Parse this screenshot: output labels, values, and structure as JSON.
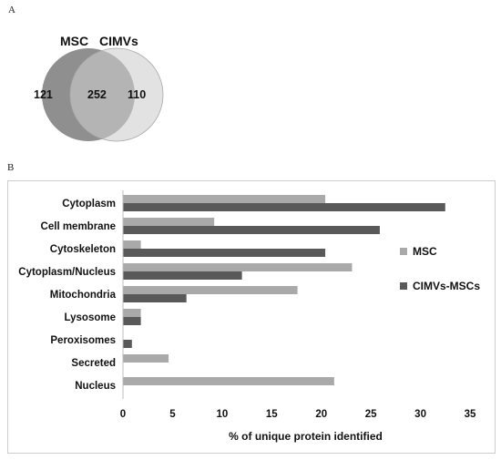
{
  "panels": {
    "a_label": "A",
    "b_label": "B"
  },
  "venn": {
    "set_a_label": "MSC",
    "set_b_label": "CIMVs",
    "only_a": "121",
    "both": "252",
    "only_b": "110",
    "colors": {
      "a": "#8f8f8f",
      "b": "#e2e2e2",
      "overlap": "#b4b4b4",
      "edge": "#a8a8a8"
    }
  },
  "chart_data": {
    "type": "bar",
    "orientation": "horizontal",
    "categories": [
      "Cytoplasm",
      "Cell membrane",
      "Cytoskeleton",
      "Cytoplasm/Nucleus",
      "Mitochondria",
      "Lysosome",
      "Peroxisomes",
      "Secreted",
      "Nucleus"
    ],
    "series": [
      {
        "name": "MSC",
        "values": [
          20.4,
          9.2,
          1.8,
          23.1,
          17.6,
          1.8,
          0,
          4.6,
          21.3
        ],
        "color": "#a9a9a9"
      },
      {
        "name": "CIMVs-MSCs",
        "values": [
          32.5,
          25.9,
          20.4,
          12.0,
          6.4,
          1.8,
          0.9,
          0,
          0
        ],
        "color": "#595959"
      }
    ],
    "xlabel": "% of unique protein identified",
    "xlim": [
      0,
      35
    ],
    "xticks": [
      "0",
      "5",
      "10",
      "15",
      "20",
      "25",
      "30",
      "35"
    ],
    "grid": false,
    "legend_position": "right"
  }
}
